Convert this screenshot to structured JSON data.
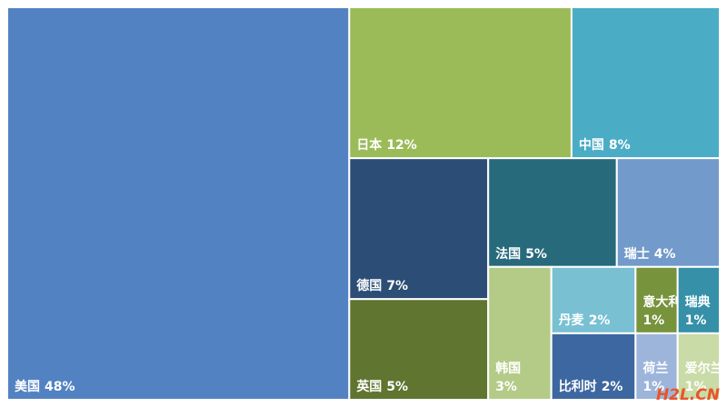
{
  "chart_data": {
    "type": "treemap",
    "categories": [
      "美国",
      "日本",
      "中国",
      "德国",
      "英国",
      "法国",
      "瑞士",
      "韩国",
      "丹麦",
      "意大利",
      "瑞典",
      "比利时",
      "荷兰",
      "爱尔兰"
    ],
    "values": [
      48,
      12,
      8,
      7,
      5,
      5,
      4,
      3,
      2,
      1,
      1,
      2,
      1,
      1
    ],
    "value_labels": [
      "48%",
      "12%",
      "8%",
      "7%",
      "5%",
      "5%",
      "4%",
      "3%",
      "2%",
      "1%",
      "1%",
      "2%",
      "1%",
      "1%"
    ],
    "colors": [
      "#5282c2",
      "#9bbb59",
      "#4bacc6",
      "#2c4d75",
      "#5f7530",
      "#276a7c",
      "#729aca",
      "#b4cb87",
      "#79c0d3",
      "#77933c",
      "#3590a8",
      "#3d67a0",
      "#9db5da",
      "#c9dba6"
    ]
  },
  "watermark": "H2L.CN"
}
